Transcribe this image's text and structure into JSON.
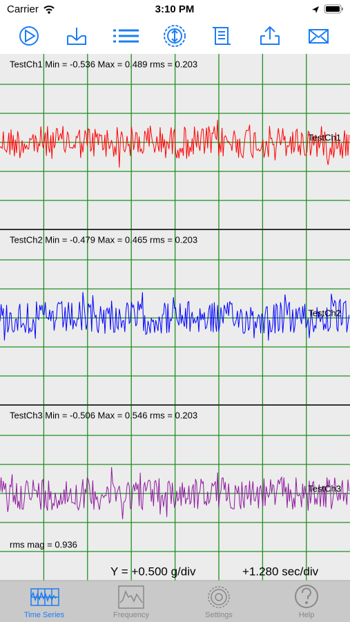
{
  "status_bar": {
    "carrier": "Carrier",
    "time": "3:10 PM"
  },
  "channels": [
    {
      "stats": "TestCh1 Min = -0.536 Max = 0.489 rms = 0.203",
      "name": "TestCh1"
    },
    {
      "stats": "TestCh2 Min = -0.479 Max = 0.465 rms = 0.203",
      "name": "TestCh2"
    },
    {
      "stats": "TestCh3 Min = -0.506 Max = 0.546 rms = 0.203",
      "name": "TestCh3"
    }
  ],
  "rms_mag": "rms mag = 0.936",
  "y_scale": "Y = +0.500 g/div",
  "x_scale": "+1.280 sec/div",
  "tabs": [
    "Time Series",
    "Frequency",
    "Settings",
    "Help"
  ]
}
